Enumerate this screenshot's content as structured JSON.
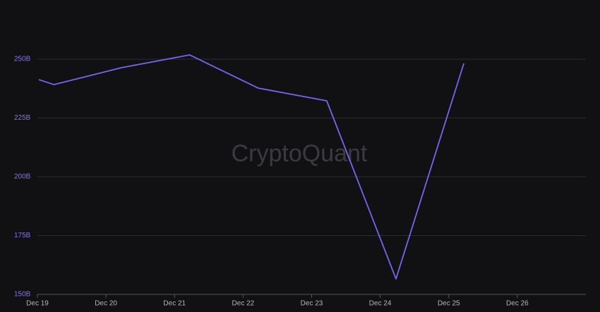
{
  "chart_data": {
    "type": "line",
    "watermark": "CryptoQuant",
    "x": [
      19.02,
      19.24,
      20.23,
      21.22,
      22.22,
      23.22,
      24.23,
      25.22
    ],
    "series": [
      {
        "color": "#7367f0",
        "values": [
          241.3,
          239.2,
          246.4,
          251.8,
          237.7,
          232.3,
          156.6,
          248.2
        ]
      }
    ],
    "xlim": [
      19,
      27
    ],
    "xticks": [
      {
        "value": 19,
        "label": "Dec 19"
      },
      {
        "value": 20,
        "label": "Dec 20"
      },
      {
        "value": 21,
        "label": "Dec 21"
      },
      {
        "value": 22,
        "label": "Dec 22"
      },
      {
        "value": 23,
        "label": "Dec 23"
      },
      {
        "value": 24,
        "label": "Dec 24"
      },
      {
        "value": 25,
        "label": "Dec 25"
      },
      {
        "value": 26,
        "label": "Dec 26"
      }
    ],
    "ylim": [
      150,
      250
    ],
    "yticks": [
      {
        "value": 150,
        "label": "150B"
      },
      {
        "value": 175,
        "label": "175B"
      },
      {
        "value": 200,
        "label": "200B"
      },
      {
        "value": 225,
        "label": "225B"
      },
      {
        "value": 250,
        "label": "250B"
      }
    ],
    "grid": true
  }
}
